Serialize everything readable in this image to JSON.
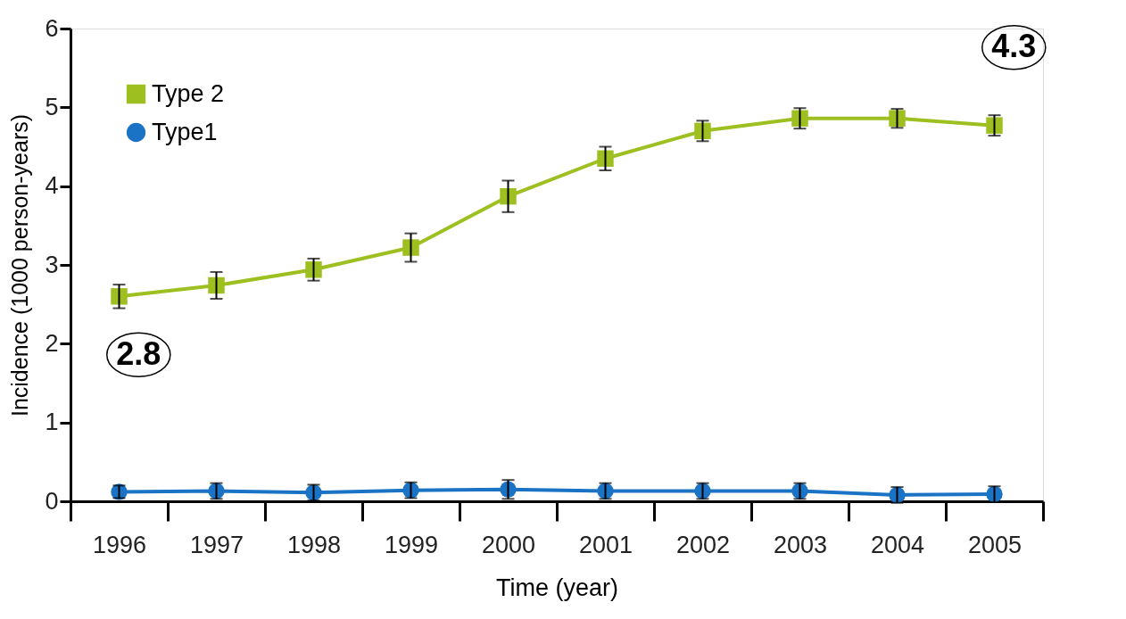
{
  "chart_data": {
    "type": "line",
    "xlabel": "Time (year)",
    "ylabel": "Incidence (1000 person-years)",
    "categories": [
      "1996",
      "1997",
      "1998",
      "1999",
      "2000",
      "2001",
      "2002",
      "2003",
      "2004",
      "2005"
    ],
    "series": [
      {
        "name": "Type 2",
        "color": "#9dbf1f",
        "marker": "square",
        "values": [
          2.6,
          2.74,
          2.94,
          3.22,
          3.87,
          4.35,
          4.7,
          4.86,
          4.86,
          4.77
        ],
        "errors": [
          0.15,
          0.17,
          0.14,
          0.18,
          0.2,
          0.15,
          0.13,
          0.13,
          0.12,
          0.13
        ]
      },
      {
        "name": "Type1",
        "color": "#1a73c4",
        "marker": "circle",
        "values": [
          0.12,
          0.13,
          0.11,
          0.14,
          0.15,
          0.13,
          0.13,
          0.13,
          0.08,
          0.09
        ],
        "errors": [
          0.08,
          0.1,
          0.1,
          0.1,
          0.12,
          0.1,
          0.1,
          0.1,
          0.1,
          0.1
        ]
      }
    ],
    "ylim": [
      0,
      6
    ],
    "yticks": [
      0,
      1,
      2,
      3,
      4,
      5,
      6
    ],
    "grid": false,
    "legend": "top left",
    "line_style": "solid",
    "annotations": [
      "2.8",
      "4.3"
    ]
  }
}
